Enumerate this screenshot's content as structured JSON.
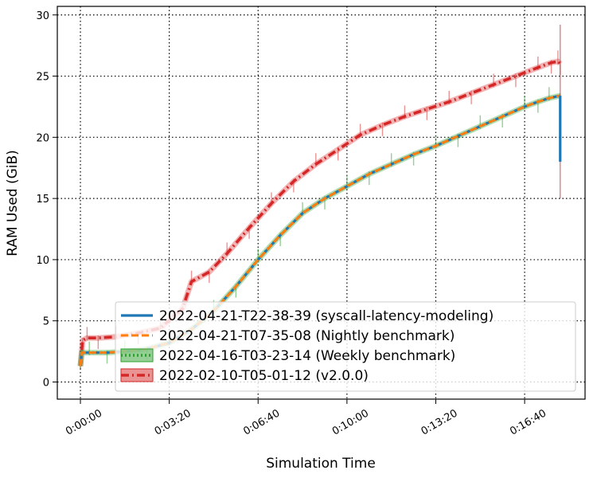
{
  "chart_data": {
    "type": "line",
    "xlabel": "Simulation Time",
    "ylabel": "RAM Used (GiB)",
    "x_ticks": [
      {
        "seconds": 0,
        "label": "0:00:00"
      },
      {
        "seconds": 200,
        "label": "0:03:20"
      },
      {
        "seconds": 400,
        "label": "0:06:40"
      },
      {
        "seconds": 600,
        "label": "0:10:00"
      },
      {
        "seconds": 800,
        "label": "0:13:20"
      },
      {
        "seconds": 1000,
        "label": "0:16:40"
      }
    ],
    "y_ticks": [
      0,
      5,
      10,
      15,
      20,
      25,
      30
    ],
    "xlim": [
      -52,
      1136
    ],
    "ylim": [
      -1.4,
      30.7
    ],
    "grid": true,
    "legend_position": "lower-right",
    "series": [
      {
        "name": "2022-04-21-T22-38-39 (syscall-latency-modeling)",
        "color": "#1f77b4",
        "linestyle": "solid",
        "band": false,
        "x": [
          0,
          3,
          20,
          60,
          100,
          150,
          200,
          250,
          300,
          350,
          400,
          450,
          500,
          550,
          600,
          650,
          700,
          750,
          800,
          850,
          900,
          950,
          1000,
          1030,
          1055,
          1080
        ],
        "y": [
          1.3,
          2.4,
          2.4,
          2.4,
          2.5,
          2.7,
          3.2,
          4.3,
          5.8,
          7.8,
          10.0,
          12.0,
          13.8,
          15.0,
          16.0,
          17.0,
          17.8,
          18.6,
          19.3,
          20.1,
          20.9,
          21.7,
          22.5,
          22.9,
          23.2,
          23.4
        ]
      },
      {
        "name": "2022-04-21-T07-35-08 (Nightly benchmark)",
        "color": "#ff7f0e",
        "linestyle": "dashed",
        "band": false,
        "x": [
          0,
          3,
          20,
          60,
          100,
          150,
          200,
          250,
          300,
          350,
          400,
          450,
          500,
          550,
          600,
          650,
          700,
          750,
          800,
          850,
          900,
          950,
          1000,
          1030,
          1055,
          1080
        ],
        "y": [
          1.3,
          2.4,
          2.4,
          2.4,
          2.5,
          2.7,
          3.2,
          4.3,
          5.8,
          7.8,
          10.0,
          12.0,
          13.8,
          15.0,
          16.0,
          17.0,
          17.8,
          18.6,
          19.3,
          20.1,
          20.9,
          21.7,
          22.5,
          22.9,
          23.2,
          23.4
        ]
      },
      {
        "name": "2022-04-16-T03-23-14 (Weekly benchmark)",
        "color": "#2ca02c",
        "linestyle": "dotted",
        "band": true,
        "x": [
          0,
          3,
          20,
          60,
          100,
          150,
          200,
          250,
          300,
          350,
          400,
          450,
          500,
          550,
          600,
          650,
          700,
          750,
          800,
          850,
          900,
          950,
          1000,
          1030,
          1055,
          1080
        ],
        "y": [
          1.3,
          2.4,
          2.4,
          2.4,
          2.5,
          2.7,
          3.2,
          4.3,
          5.8,
          7.8,
          10.0,
          12.0,
          13.8,
          15.0,
          16.0,
          17.0,
          17.8,
          18.6,
          19.3,
          20.1,
          20.9,
          21.7,
          22.5,
          22.9,
          23.2,
          23.4
        ]
      },
      {
        "name": "2022-02-10-T05-01-12 (v2.0.0)",
        "color": "#d62728",
        "linestyle": "dashdot",
        "band": true,
        "x": [
          0,
          5,
          15,
          40,
          80,
          130,
          180,
          230,
          250,
          290,
          330,
          380,
          430,
          480,
          530,
          580,
          630,
          680,
          730,
          780,
          830,
          880,
          930,
          980,
          1030,
          1060,
          1075,
          1080
        ],
        "y": [
          1.3,
          3.4,
          3.6,
          3.6,
          3.7,
          4.0,
          4.4,
          6.0,
          8.2,
          9.0,
          10.5,
          12.6,
          14.6,
          16.4,
          17.8,
          19.0,
          20.2,
          21.0,
          21.7,
          22.3,
          22.9,
          23.6,
          24.3,
          25.0,
          25.7,
          26.1,
          26.2,
          26.0
        ]
      }
    ],
    "end_spread": [
      {
        "color": "#d62728",
        "x": 1080,
        "low": 15.0,
        "high": 29.2
      },
      {
        "color": "#1f77b4",
        "x": 1080,
        "low": 18.0,
        "high": 23.4
      }
    ]
  }
}
